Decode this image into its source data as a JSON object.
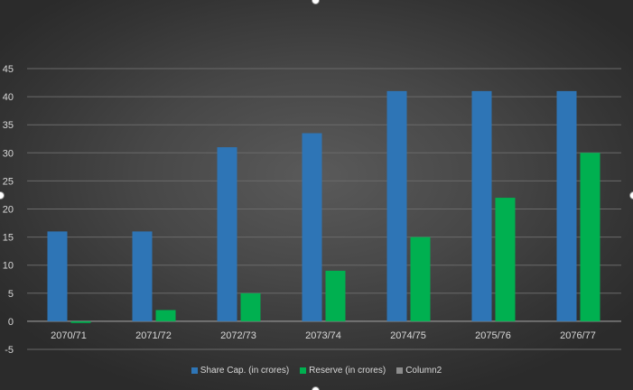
{
  "chart_data": {
    "type": "bar",
    "categories": [
      "2070/71",
      "2071/72",
      "2072/73",
      "2073/74",
      "2074/75",
      "2075/76",
      "2076/77"
    ],
    "series": [
      {
        "name": "Share Cap. (in crores)",
        "values": [
          16,
          16,
          31,
          33.5,
          41,
          41,
          41
        ],
        "color": "#2e75b6"
      },
      {
        "name": "Reserve (in crores)",
        "values": [
          -0.3,
          2,
          5,
          9,
          15,
          22,
          30
        ],
        "color": "#00b050"
      },
      {
        "name": "Column2",
        "values": [
          null,
          null,
          null,
          null,
          null,
          null,
          null
        ],
        "color": "#8c8c8c"
      }
    ],
    "yticks": [
      -5,
      0,
      5,
      10,
      15,
      20,
      25,
      30,
      35,
      40,
      45
    ],
    "ylim": [
      -5,
      45
    ],
    "grid": true,
    "legend_position": "bottom",
    "title": "",
    "xlabel": "",
    "ylabel": ""
  }
}
